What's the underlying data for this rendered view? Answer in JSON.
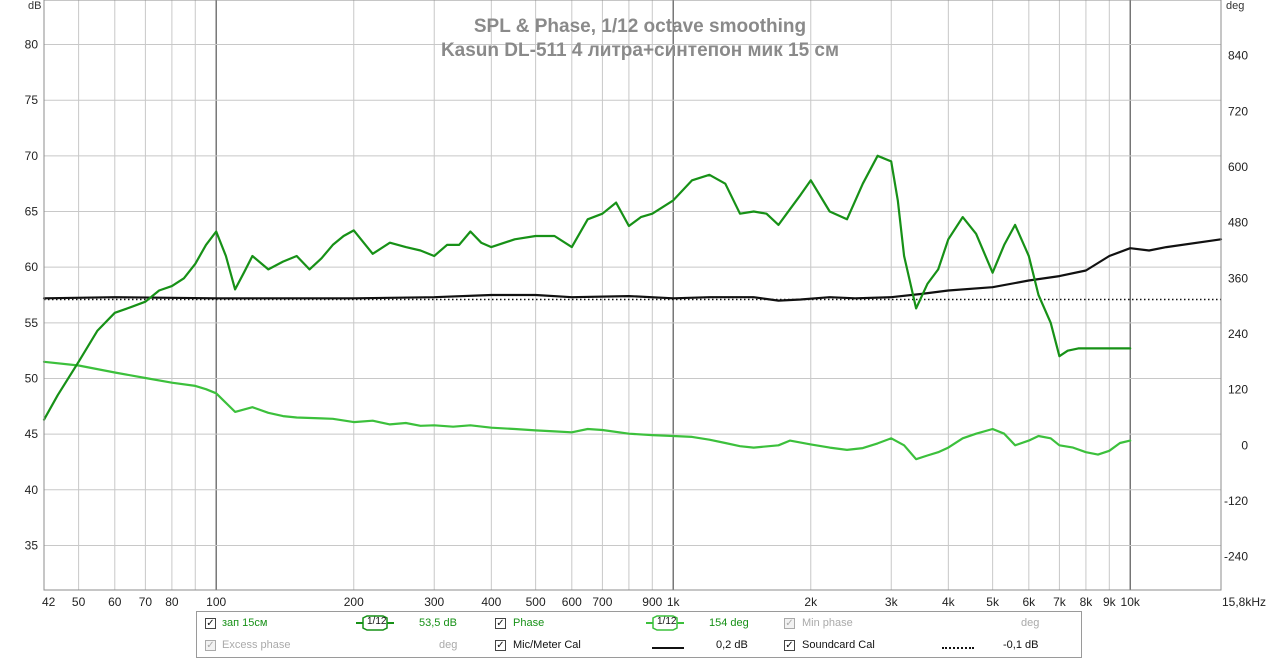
{
  "chart_data": {
    "type": "line",
    "title": "SPL & Phase, 1/12 octave smoothing",
    "subtitle": "Kasun DL-511 4 литра+синтепон мик 15 см",
    "left_unit": "dB",
    "right_unit": "deg",
    "xscale": "log",
    "xlim": [
      42,
      15800
    ],
    "ylim_left": [
      31,
      84
    ],
    "ylim_right": [
      -312,
      960
    ],
    "x_ticks": [
      {
        "value": 42,
        "label": "42"
      },
      {
        "value": 50,
        "label": "50"
      },
      {
        "value": 60,
        "label": "60"
      },
      {
        "value": 70,
        "label": "70"
      },
      {
        "value": 80,
        "label": "80"
      },
      {
        "value": 100,
        "label": "100"
      },
      {
        "value": 200,
        "label": "200"
      },
      {
        "value": 300,
        "label": "300"
      },
      {
        "value": 400,
        "label": "400"
      },
      {
        "value": 500,
        "label": "500"
      },
      {
        "value": 600,
        "label": "600"
      },
      {
        "value": 700,
        "label": "700"
      },
      {
        "value": 900,
        "label": "900"
      },
      {
        "value": 1000,
        "label": "1k"
      },
      {
        "value": 2000,
        "label": "2k"
      },
      {
        "value": 3000,
        "label": "3k"
      },
      {
        "value": 4000,
        "label": "4k"
      },
      {
        "value": 5000,
        "label": "5k"
      },
      {
        "value": 6000,
        "label": "6k"
      },
      {
        "value": 7000,
        "label": "7k"
      },
      {
        "value": 8000,
        "label": "8k"
      },
      {
        "value": 9000,
        "label": "9k"
      },
      {
        "value": 10000,
        "label": "10k"
      },
      {
        "value": 15800,
        "label": "15,8kHz"
      }
    ],
    "y_left_ticks": [
      35,
      40,
      45,
      50,
      55,
      60,
      65,
      70,
      75,
      80
    ],
    "y_right_ticks": [
      -240,
      -120,
      0,
      120,
      240,
      360,
      480,
      600,
      720,
      840
    ],
    "series": [
      {
        "name": "зап 15см",
        "color": "#179117",
        "axis": "left",
        "x": [
          42,
          45,
          50,
          55,
          60,
          65,
          70,
          75,
          80,
          85,
          90,
          95,
          100,
          105,
          110,
          115,
          120,
          130,
          140,
          150,
          160,
          170,
          180,
          190,
          200,
          220,
          240,
          260,
          280,
          300,
          320,
          340,
          360,
          380,
          400,
          450,
          500,
          550,
          600,
          650,
          700,
          750,
          800,
          850,
          900,
          1000,
          1100,
          1200,
          1300,
          1400,
          1500,
          1600,
          1700,
          1800,
          1900,
          2000,
          2200,
          2400,
          2600,
          2800,
          3000,
          3100,
          3200,
          3400,
          3600,
          3800,
          4000,
          4300,
          4600,
          5000,
          5300,
          5600,
          6000,
          6300,
          6700,
          7000,
          7300,
          7700,
          8000,
          8500,
          9000,
          9500,
          10000
        ],
        "values": [
          46.3,
          48.5,
          51.5,
          54.3,
          55.9,
          56.4,
          56.9,
          57.9,
          58.3,
          59.0,
          60.3,
          62.0,
          63.2,
          61.0,
          58.0,
          59.5,
          61.0,
          59.8,
          60.5,
          61.0,
          59.8,
          60.8,
          62.0,
          62.8,
          63.3,
          61.2,
          62.2,
          61.8,
          61.5,
          61.0,
          62.0,
          62.0,
          63.2,
          62.2,
          61.8,
          62.5,
          62.8,
          62.8,
          61.8,
          64.3,
          64.8,
          65.8,
          63.7,
          64.5,
          64.8,
          66.0,
          67.8,
          68.3,
          67.5,
          64.8,
          65.0,
          64.8,
          63.8,
          65.2,
          66.5,
          67.8,
          65.0,
          64.3,
          67.5,
          70.0,
          69.5,
          66.0,
          61.0,
          56.3,
          58.5,
          59.8,
          62.5,
          64.5,
          63.0,
          59.5,
          62.0,
          63.8,
          61.0,
          57.5,
          55.0,
          52.0,
          52.5,
          52.7,
          52.7,
          52.7,
          52.7,
          52.7,
          52.7
        ]
      },
      {
        "name": "Phase",
        "color": "#3cc03c",
        "axis": "right",
        "x": [
          42,
          50,
          60,
          70,
          80,
          90,
          95,
          100,
          110,
          120,
          130,
          140,
          150,
          170,
          180,
          200,
          220,
          240,
          260,
          280,
          300,
          330,
          360,
          400,
          450,
          500,
          550,
          600,
          650,
          700,
          800,
          900,
          1000,
          1100,
          1200,
          1300,
          1400,
          1500,
          1700,
          1800,
          2000,
          2200,
          2400,
          2600,
          2800,
          3000,
          3200,
          3400,
          3600,
          3800,
          4000,
          4300,
          4600,
          5000,
          5300,
          5600,
          6000,
          6300,
          6700,
          7000,
          7500,
          8000,
          8500,
          9000,
          9500,
          10000
        ],
        "values": [
          180,
          172,
          157,
          145,
          135,
          128,
          121,
          112,
          72,
          82,
          70,
          63,
          60,
          58,
          57,
          50,
          53,
          45,
          48,
          42,
          43,
          40,
          43,
          38,
          35,
          32,
          30,
          28,
          35,
          33,
          25,
          22,
          20,
          18,
          12,
          5,
          -2,
          -5,
          0,
          10,
          2,
          -5,
          -10,
          -6,
          4,
          15,
          0,
          -30,
          -22,
          -15,
          -5,
          15,
          25,
          35,
          25,
          0,
          10,
          20,
          15,
          0,
          -5,
          -15,
          -20,
          -12,
          5,
          10
        ]
      },
      {
        "name": "Mic/Meter Cal",
        "color": "#111111",
        "axis": "left",
        "x": [
          42,
          60,
          100,
          150,
          200,
          300,
          400,
          500,
          600,
          800,
          1000,
          1200,
          1500,
          1700,
          1900,
          2200,
          2500,
          3000,
          3500,
          4000,
          5000,
          6000,
          7000,
          8000,
          9000,
          10000,
          11000,
          12000,
          15800
        ],
        "values": [
          57.2,
          57.3,
          57.2,
          57.2,
          57.2,
          57.3,
          57.5,
          57.5,
          57.3,
          57.4,
          57.2,
          57.3,
          57.3,
          57.0,
          57.1,
          57.3,
          57.2,
          57.3,
          57.6,
          57.9,
          58.2,
          58.8,
          59.2,
          59.7,
          61.0,
          61.7,
          61.5,
          61.8,
          62.5
        ]
      },
      {
        "name": "Soundcard Cal",
        "color": "#111111",
        "axis": "left",
        "dash": "dotted",
        "x": [
          42,
          100,
          1000,
          10000,
          15800
        ],
        "values": [
          57.1,
          57.1,
          57.1,
          57.1,
          57.1
        ]
      }
    ]
  },
  "legend": {
    "row1": [
      {
        "checked": true,
        "enabled": true,
        "label": "зап 15см",
        "smoothing": "1/12",
        "value": "53,5 dB",
        "color": "#179117"
      },
      {
        "checked": true,
        "enabled": true,
        "label": "Phase",
        "smoothing": "1/12",
        "value": "154 deg",
        "color": "#179117"
      },
      {
        "checked": true,
        "enabled": false,
        "label": "Min phase",
        "value": "deg",
        "color": "#aaaaaa"
      }
    ],
    "row2": [
      {
        "checked": true,
        "enabled": false,
        "label": "Excess phase",
        "value": "deg",
        "color": "#aaaaaa"
      },
      {
        "checked": true,
        "enabled": true,
        "label": "Mic/Meter Cal",
        "value": "0,2 dB",
        "color": "#111111"
      },
      {
        "checked": true,
        "enabled": true,
        "label": "Soundcard Cal",
        "value": "-0,1 dB",
        "color": "#111111"
      }
    ]
  }
}
